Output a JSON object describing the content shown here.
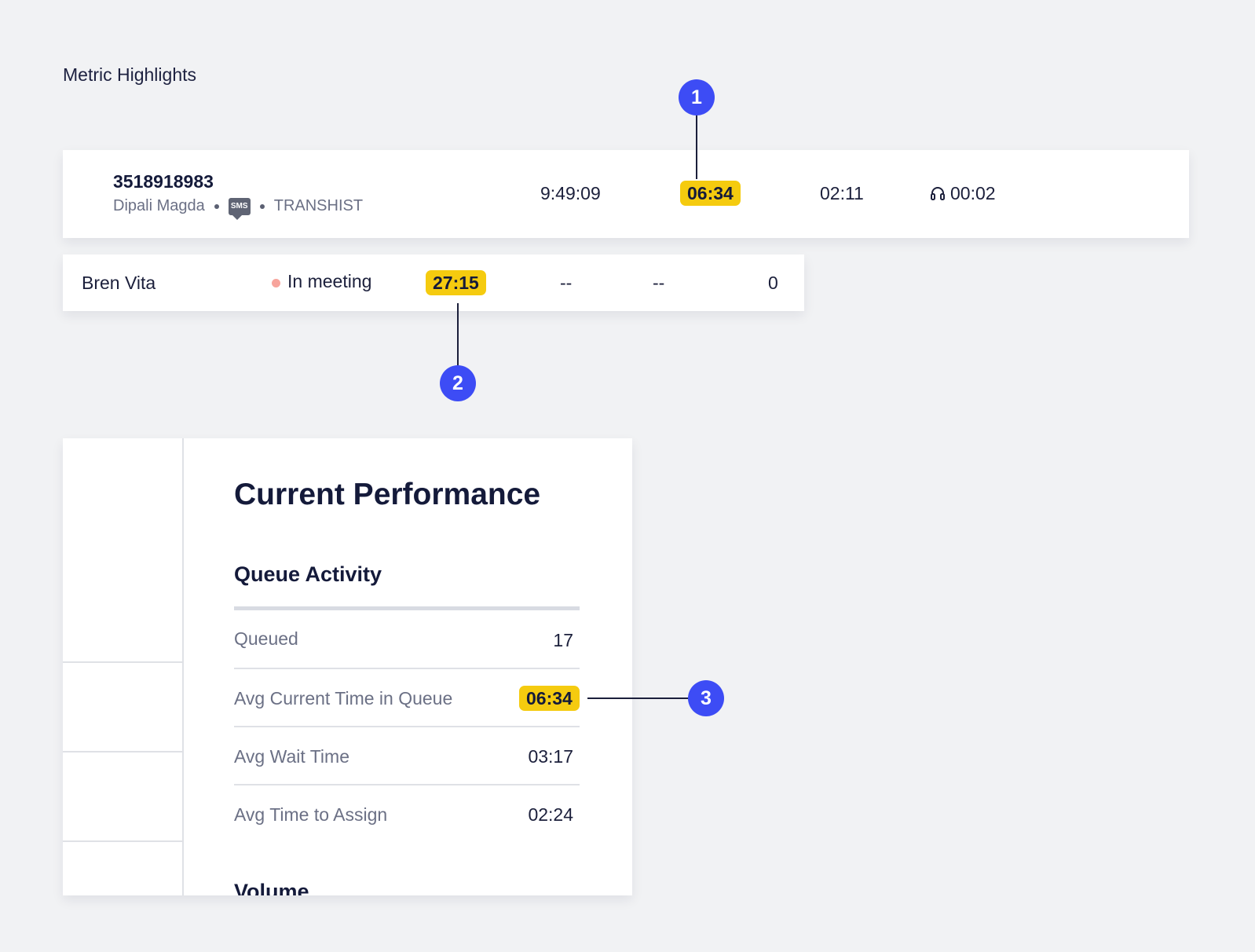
{
  "page": {
    "section_title": "Metric Highlights"
  },
  "conversation": {
    "number": "3518918983",
    "agent": "Dipali Magda",
    "channel_icon_label": "SMS",
    "channel_icon": "sms-icon",
    "queue": "TRANSHIST",
    "time": "9:49:09",
    "highlight_value": "06:34",
    "value_3": "02:11",
    "talk_icon": "headset-icon",
    "talk_time": "00:02"
  },
  "agent_row": {
    "name": "Bren Vita",
    "status": "In meeting",
    "status_color": "#f7a49c",
    "highlight_value": "27:15",
    "col_a": "--",
    "col_b": "--",
    "count": "0"
  },
  "callouts": [
    "1",
    "2",
    "3"
  ],
  "performance": {
    "title": "Current Performance",
    "section": "Queue Activity",
    "rows": [
      {
        "label": "Queued",
        "value": "17"
      },
      {
        "label": "Avg Current Time in Queue",
        "value": "06:34",
        "highlighted": true
      },
      {
        "label": "Avg Wait Time",
        "value": "03:17"
      },
      {
        "label": "Avg Time to Assign",
        "value": "02:24"
      }
    ],
    "next_section": "Volume"
  },
  "colors": {
    "highlight": "#f5cb0f",
    "callout": "#3d4cf5",
    "background": "#f1f2f4"
  }
}
